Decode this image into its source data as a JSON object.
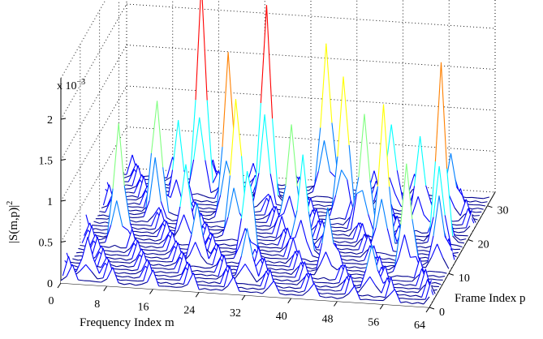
{
  "chart_data": {
    "type": "waterfall-3d",
    "title": "",
    "xlabel": "Frequency Index m",
    "ylabel": "Frame Index p",
    "zlabel_main": "|S(m,p)|",
    "zlabel_sup": "2",
    "scale_base": "x 10",
    "scale_exp": "−3",
    "xlim": [
      0,
      64
    ],
    "ylim": [
      0,
      34
    ],
    "zlim": [
      0,
      2.5
    ],
    "x_ticks": [
      "0",
      "8",
      "16",
      "24",
      "32",
      "40",
      "48",
      "56",
      "64"
    ],
    "y_ticks": [
      "0",
      "10",
      "20",
      "30"
    ],
    "z_ticks": [
      "0",
      "0.5",
      "1",
      "1.5",
      "2"
    ],
    "grid": true,
    "colormap": [
      "#00008f",
      "#0000ff",
      "#0080ff",
      "#00ffff",
      "#80ff80",
      "#ffff00",
      "#ff8000",
      "#ff0000"
    ],
    "frames": 32,
    "bins": 64,
    "peaks": [
      {
        "m": 4,
        "p": 2,
        "v": 0.45
      },
      {
        "m": 6,
        "p": 12,
        "v": 1.45
      },
      {
        "m": 10,
        "p": 20,
        "v": 1.35
      },
      {
        "m": 15,
        "p": 28,
        "v": 2.55
      },
      {
        "m": 13,
        "p": 22,
        "v": 1.1
      },
      {
        "m": 17,
        "p": 14,
        "v": 0.9
      },
      {
        "m": 21,
        "p": 8,
        "v": 0.7
      },
      {
        "m": 22,
        "p": 21,
        "v": 1.95
      },
      {
        "m": 25,
        "p": 16,
        "v": 1.65
      },
      {
        "m": 27,
        "p": 26,
        "v": 2.35
      },
      {
        "m": 29,
        "p": 10,
        "v": 1.05
      },
      {
        "m": 31,
        "p": 4,
        "v": 0.6
      },
      {
        "m": 34,
        "p": 18,
        "v": 1.3
      },
      {
        "m": 36,
        "p": 30,
        "v": 1.8
      },
      {
        "m": 38,
        "p": 12,
        "v": 1.2
      },
      {
        "m": 41,
        "p": 24,
        "v": 1.6
      },
      {
        "m": 44,
        "p": 7,
        "v": 0.8
      },
      {
        "m": 46,
        "p": 20,
        "v": 1.4
      },
      {
        "m": 48,
        "p": 28,
        "v": 0.95
      },
      {
        "m": 51,
        "p": 15,
        "v": 1.75
      },
      {
        "m": 53,
        "p": 3,
        "v": 0.55
      },
      {
        "m": 55,
        "p": 22,
        "v": 1.1
      },
      {
        "m": 57,
        "p": 9,
        "v": 1.3
      },
      {
        "m": 59,
        "p": 26,
        "v": 0.75
      },
      {
        "m": 60,
        "p": 18,
        "v": 2.05
      },
      {
        "m": 62,
        "p": 11,
        "v": 0.85
      }
    ]
  }
}
